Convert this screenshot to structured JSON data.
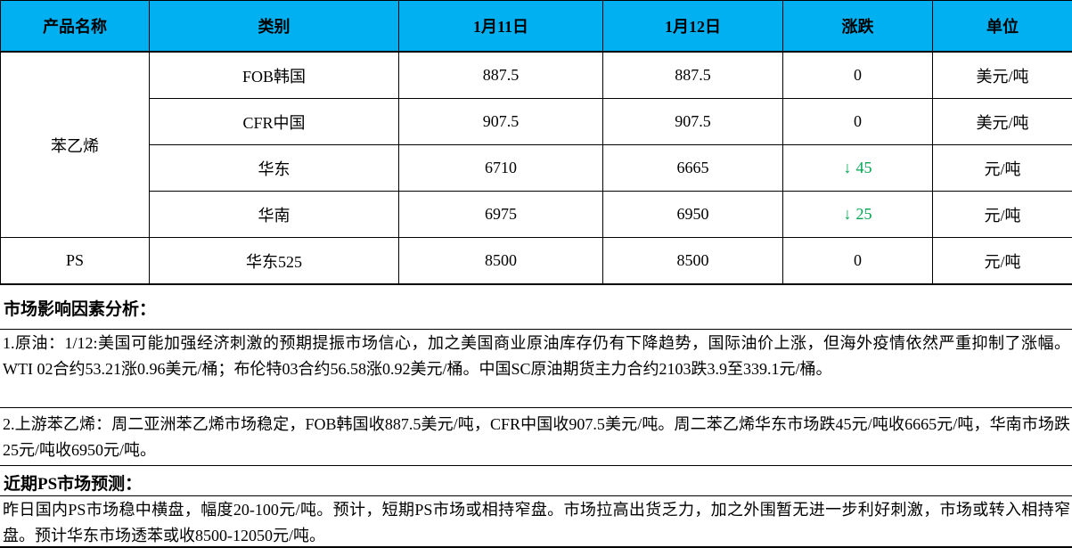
{
  "colors": {
    "header_bg": "#00B0F0",
    "down_green": "#00A550",
    "text": "#000000"
  },
  "table": {
    "headers": [
      "产品名称",
      "类别",
      "1月11日",
      "1月12日",
      "涨跌",
      "单位"
    ],
    "rows": [
      {
        "product": "苯乙烯",
        "category": "FOB韩国",
        "day1": "887.5",
        "day2": "887.5",
        "change": "0",
        "arrow": "",
        "unit": "美元/吨"
      },
      {
        "category": "CFR中国",
        "day1": "907.5",
        "day2": "907.5",
        "change": "0",
        "arrow": "",
        "unit": "美元/吨"
      },
      {
        "category": "华东",
        "day1": "6710",
        "day2": "6665",
        "change": "45",
        "arrow": "↓",
        "unit": "元/吨"
      },
      {
        "category": "华南",
        "day1": "6975",
        "day2": "6950",
        "change": "25",
        "arrow": "↓",
        "unit": "元/吨"
      },
      {
        "product": "PS",
        "category": "华东525",
        "day1": "8500",
        "day2": "8500",
        "change": "0",
        "arrow": "",
        "unit": "元/吨"
      }
    ]
  },
  "analysis": {
    "title": "市场影响因素分析：",
    "paragraphs": [
      "1.原油：1/12:美国可能加强经济刺激的预期提振市场信心，加之美国商业原油库存仍有下降趋势，国际油价上涨，但海外疫情依然严重抑制了涨幅。WTI  02合约53.21涨0.96美元/桶；布伦特03合约56.58涨0.92美元/桶。中国SC原油期货主力合约2103跌3.9至339.1元/桶。",
      "2.上游苯乙烯：周二亚洲苯乙烯市场稳定，FOB韩国收887.5美元/吨，CFR中国收907.5美元/吨。周二苯乙烯华东市场跌45元/吨收6665元/吨，华南市场跌25元/吨收6950元/吨。"
    ]
  },
  "forecast": {
    "title": "近期PS市场预测：",
    "paragraph": "昨日国内PS市场稳中横盘，幅度20-100元/吨。预计，短期PS市场或相持窄盘。市场拉高出货乏力，加之外围暂无进一步利好刺激，市场或转入相持窄盘。预计华东市场透苯或收8500-12050元/吨。"
  }
}
